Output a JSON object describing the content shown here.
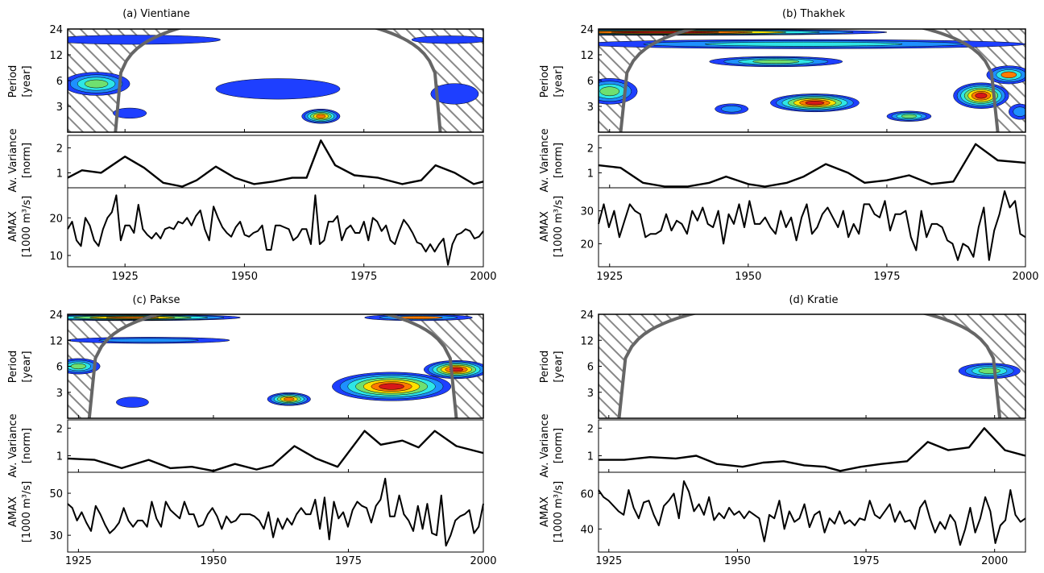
{
  "colors": {
    "blue": "#1e3fff",
    "lightblue": "#1e90ff",
    "cyan": "#2ee6e6",
    "green": "#6fe06f",
    "yellow": "#ffe000",
    "orange": "#ff7a00",
    "red": "#d81818",
    "coi": "#666666",
    "hatch": "#888888",
    "line": "#000000"
  },
  "chart_data": [
    {
      "type": "line",
      "panel": "a",
      "title": "(a) Vientiane",
      "period_label": [
        "Period",
        "[year]"
      ],
      "variance_label": [
        "Av. Variance",
        "[norm]"
      ],
      "amax_label": [
        "AMAX",
        "[1000 m³/s]"
      ],
      "xlim": [
        1913,
        2000
      ],
      "x_ticks": [
        "1925",
        "1950",
        "1975",
        "2000"
      ],
      "period_ticks": [
        "3",
        "6",
        "12",
        "24"
      ],
      "variance_ticks": [
        "1",
        "2"
      ],
      "variance_ylim": [
        0.4,
        2.5
      ],
      "amax_ticks": [
        "10",
        "20"
      ],
      "amax_ylim": [
        7,
        28
      ],
      "coi_peak_year": 1957,
      "coi_half_width": 34,
      "blobs": [
        {
          "x": 1919,
          "y": 5.5,
          "rx": 7,
          "ry": 0.45,
          "levels": [
            "blue",
            "lightblue",
            "cyan",
            "green"
          ]
        },
        {
          "x": 1926,
          "y": 2.5,
          "rx": 3.5,
          "ry": 0.2,
          "levels": [
            "blue"
          ]
        },
        {
          "x": 1927,
          "y": 18,
          "rx": 18,
          "ry": 0.18,
          "levels": [
            "blue"
          ]
        },
        {
          "x": 1957,
          "y": 4.8,
          "rx": 13,
          "ry": 0.4,
          "levels": [
            "blue"
          ]
        },
        {
          "x": 1966,
          "y": 2.3,
          "rx": 4,
          "ry": 0.28,
          "levels": [
            "blue",
            "lightblue",
            "cyan",
            "green",
            "yellow",
            "orange"
          ]
        },
        {
          "x": 1994,
          "y": 4.2,
          "rx": 5,
          "ry": 0.4,
          "levels": [
            "blue"
          ]
        },
        {
          "x": 1993,
          "y": 18,
          "rx": 8,
          "ry": 0.15,
          "levels": [
            "blue"
          ]
        }
      ],
      "variance": [
        [
          1913,
          0.8
        ],
        [
          1916,
          1.1
        ],
        [
          1920,
          1.0
        ],
        [
          1925,
          1.65
        ],
        [
          1929,
          1.2
        ],
        [
          1933,
          0.6
        ],
        [
          1937,
          0.45
        ],
        [
          1940,
          0.7
        ],
        [
          1944,
          1.25
        ],
        [
          1948,
          0.8
        ],
        [
          1952,
          0.55
        ],
        [
          1956,
          0.65
        ],
        [
          1960,
          0.8
        ],
        [
          1963,
          0.8
        ],
        [
          1966,
          2.3
        ],
        [
          1969,
          1.3
        ],
        [
          1973,
          0.9
        ],
        [
          1978,
          0.8
        ],
        [
          1983,
          0.55
        ],
        [
          1987,
          0.7
        ],
        [
          1990,
          1.3
        ],
        [
          1994,
          1.0
        ],
        [
          1998,
          0.55
        ],
        [
          2000,
          0.65
        ]
      ],
      "amax": [
        17,
        19,
        14,
        12.5,
        20,
        18,
        14,
        12.5,
        17,
        20,
        21.5,
        26,
        14,
        18,
        18,
        16,
        23.5,
        17,
        15.5,
        14.5,
        16,
        14.5,
        17,
        17.5,
        17,
        19,
        18.5,
        20,
        18,
        20.5,
        22,
        17,
        14,
        23,
        20,
        17.5,
        16,
        15,
        17.5,
        19,
        15.5,
        15,
        16,
        16.5,
        18,
        11.5,
        11.5,
        18,
        18,
        17.5,
        17,
        14,
        15,
        17,
        17,
        13,
        26,
        13,
        14,
        19,
        19,
        20.5,
        14,
        17,
        18,
        16,
        16,
        19,
        14,
        20,
        19,
        16.5,
        18,
        14,
        13,
        16.5,
        19.5,
        18,
        16,
        13.5,
        13,
        11,
        13,
        11,
        13,
        14.5,
        7.5,
        13,
        15.5,
        16,
        17,
        16.5,
        14.5,
        15,
        16.5
      ]
    },
    {
      "type": "line",
      "panel": "b",
      "title": "(b) Thakhek",
      "period_label": [
        "Period",
        "[year]"
      ],
      "variance_label": [
        "Av. Variance",
        "[norm]"
      ],
      "amax_label": [
        "AMAX",
        "[1000 m³/s]"
      ],
      "xlim": [
        1923,
        2000
      ],
      "x_ticks": [
        "1925",
        "1950",
        "1975",
        "2000"
      ],
      "period_ticks": [
        "3",
        "6",
        "12",
        "24"
      ],
      "variance_ticks": [
        "1",
        "2"
      ],
      "variance_ylim": [
        0.4,
        2.5
      ],
      "amax_ticks": [
        "20",
        "30"
      ],
      "amax_ylim": [
        13,
        37
      ],
      "coi_peak_year": 1961,
      "coi_half_width": 34,
      "blobs": [
        {
          "x": 1935,
          "y": 22,
          "rx": 40,
          "ry": 0.12,
          "levels": [
            "blue",
            "lightblue",
            "cyan",
            "yellow",
            "orange",
            "red"
          ]
        },
        {
          "x": 1960,
          "y": 16,
          "rx": 40,
          "ry": 0.18,
          "levels": [
            "blue",
            "lightblue",
            "cyan"
          ]
        },
        {
          "x": 1955,
          "y": 10,
          "rx": 12,
          "ry": 0.2,
          "levels": [
            "blue",
            "lightblue",
            "cyan",
            "green"
          ]
        },
        {
          "x": 1925,
          "y": 4.5,
          "rx": 5,
          "ry": 0.5,
          "levels": [
            "blue",
            "lightblue",
            "cyan",
            "green"
          ]
        },
        {
          "x": 1947,
          "y": 2.8,
          "rx": 3,
          "ry": 0.2,
          "levels": [
            "blue",
            "lightblue"
          ]
        },
        {
          "x": 1962,
          "y": 3.3,
          "rx": 8,
          "ry": 0.35,
          "levels": [
            "blue",
            "lightblue",
            "cyan",
            "green",
            "yellow",
            "orange",
            "red"
          ]
        },
        {
          "x": 1979,
          "y": 2.3,
          "rx": 4,
          "ry": 0.2,
          "levels": [
            "blue",
            "lightblue",
            "cyan",
            "green"
          ]
        },
        {
          "x": 1992,
          "y": 4.0,
          "rx": 5,
          "ry": 0.5,
          "levels": [
            "blue",
            "lightblue",
            "cyan",
            "green",
            "yellow",
            "orange",
            "red"
          ]
        },
        {
          "x": 1997,
          "y": 7,
          "rx": 4,
          "ry": 0.35,
          "levels": [
            "blue",
            "lightblue",
            "cyan",
            "orange"
          ]
        },
        {
          "x": 1999,
          "y": 2.6,
          "rx": 2,
          "ry": 0.3,
          "levels": [
            "blue",
            "lightblue"
          ]
        }
      ],
      "variance": [
        [
          1923,
          1.3
        ],
        [
          1927,
          1.2
        ],
        [
          1931,
          0.6
        ],
        [
          1935,
          0.45
        ],
        [
          1939,
          0.45
        ],
        [
          1943,
          0.6
        ],
        [
          1946,
          0.85
        ],
        [
          1950,
          0.55
        ],
        [
          1953,
          0.45
        ],
        [
          1957,
          0.6
        ],
        [
          1960,
          0.85
        ],
        [
          1964,
          1.35
        ],
        [
          1968,
          1.0
        ],
        [
          1971,
          0.6
        ],
        [
          1975,
          0.7
        ],
        [
          1979,
          0.9
        ],
        [
          1983,
          0.55
        ],
        [
          1987,
          0.65
        ],
        [
          1991,
          2.15
        ],
        [
          1995,
          1.5
        ],
        [
          2000,
          1.4
        ]
      ],
      "amax": [
        26,
        32,
        25,
        30,
        22,
        27,
        32,
        30,
        29,
        22,
        23,
        23,
        24,
        29,
        24,
        27,
        26,
        23,
        30,
        27,
        31,
        26,
        25,
        30,
        20,
        29,
        26,
        32,
        25,
        33,
        26,
        26,
        28,
        25,
        23,
        30,
        25,
        28,
        21,
        28,
        32,
        23,
        25,
        29,
        31,
        28,
        25,
        30,
        22,
        26,
        23,
        32,
        32,
        29,
        28,
        33,
        24,
        29,
        29,
        30,
        22,
        18,
        30,
        22,
        26,
        26,
        25,
        21,
        20,
        15,
        20,
        19,
        16,
        25,
        31,
        15,
        24,
        29,
        36,
        31,
        33,
        23,
        22
      ]
    },
    {
      "type": "line",
      "panel": "c",
      "title": "(c) Pakse",
      "period_label": [
        "Period",
        "[year]"
      ],
      "variance_label": [
        "Av. Variance",
        "[norm]"
      ],
      "amax_label": [
        "AMAX",
        "[1000 m³/s]"
      ],
      "xlim": [
        1923,
        2000
      ],
      "x_ticks": [
        "1925",
        "1950",
        "1975",
        "2000"
      ],
      "period_ticks": [
        "3",
        "6",
        "12",
        "24"
      ],
      "variance_ticks": [
        "1",
        "2"
      ],
      "variance_ylim": [
        0.4,
        2.3
      ],
      "amax_ticks": [
        "30",
        "50"
      ],
      "amax_ylim": [
        22,
        60
      ],
      "coi_peak_year": 1961,
      "coi_half_width": 34,
      "blobs": [
        {
          "x": 1935,
          "y": 22,
          "rx": 20,
          "ry": 0.12,
          "levels": [
            "blue",
            "lightblue",
            "cyan",
            "green",
            "yellow",
            "orange"
          ]
        },
        {
          "x": 1938,
          "y": 12,
          "rx": 15,
          "ry": 0.12,
          "levels": [
            "blue",
            "lightblue"
          ]
        },
        {
          "x": 1925,
          "y": 6,
          "rx": 4,
          "ry": 0.3,
          "levels": [
            "blue",
            "lightblue",
            "cyan",
            "green"
          ]
        },
        {
          "x": 1935,
          "y": 2.3,
          "rx": 3,
          "ry": 0.2,
          "levels": [
            "blue"
          ]
        },
        {
          "x": 1964,
          "y": 2.5,
          "rx": 4,
          "ry": 0.25,
          "levels": [
            "blue",
            "lightblue",
            "cyan",
            "green",
            "yellow",
            "orange"
          ]
        },
        {
          "x": 1983,
          "y": 3.5,
          "rx": 11,
          "ry": 0.55,
          "levels": [
            "blue",
            "lightblue",
            "cyan",
            "green",
            "yellow",
            "orange",
            "red"
          ]
        },
        {
          "x": 1995,
          "y": 5.5,
          "rx": 6,
          "ry": 0.35,
          "levels": [
            "blue",
            "lightblue",
            "cyan",
            "green",
            "yellow",
            "orange",
            "red"
          ]
        },
        {
          "x": 1988,
          "y": 22,
          "rx": 10,
          "ry": 0.12,
          "levels": [
            "blue",
            "lightblue",
            "orange"
          ]
        }
      ],
      "variance": [
        [
          1923,
          0.9
        ],
        [
          1928,
          0.85
        ],
        [
          1933,
          0.55
        ],
        [
          1938,
          0.85
        ],
        [
          1942,
          0.55
        ],
        [
          1946,
          0.6
        ],
        [
          1950,
          0.45
        ],
        [
          1954,
          0.7
        ],
        [
          1958,
          0.5
        ],
        [
          1961,
          0.65
        ],
        [
          1965,
          1.35
        ],
        [
          1969,
          0.9
        ],
        [
          1973,
          0.6
        ],
        [
          1978,
          1.9
        ],
        [
          1981,
          1.4
        ],
        [
          1985,
          1.55
        ],
        [
          1988,
          1.3
        ],
        [
          1991,
          1.9
        ],
        [
          1995,
          1.35
        ],
        [
          2000,
          1.1
        ]
      ],
      "amax": [
        45,
        43,
        37,
        41,
        36,
        32,
        44,
        40,
        35,
        31,
        33,
        36,
        43,
        37,
        34,
        37,
        37,
        34,
        46,
        38,
        34,
        46,
        42,
        40,
        38,
        46,
        40,
        40,
        34,
        35,
        40,
        43,
        39,
        33,
        39,
        36,
        37,
        40,
        40,
        40,
        39,
        37,
        33,
        41,
        29,
        38,
        33,
        38,
        35,
        40,
        43,
        40,
        40,
        47,
        33,
        48,
        28,
        46,
        38,
        41,
        34,
        42,
        46,
        44,
        43,
        36,
        44,
        47,
        57,
        39,
        39,
        49,
        40,
        37,
        32,
        44,
        33,
        45,
        31,
        30,
        49,
        25,
        30,
        37,
        39,
        40,
        42,
        31,
        34,
        45
      ]
    },
    {
      "type": "line",
      "panel": "d",
      "title": "(d) Kratie",
      "period_label": [
        "Period",
        "[year]"
      ],
      "variance_label": [
        "Av. Variance",
        "[norm]"
      ],
      "amax_label": [
        "AMAX",
        "[1000 m³/s]"
      ],
      "xlim": [
        1923,
        2006
      ],
      "x_ticks": [
        "1925",
        "1950",
        "1975",
        "2000"
      ],
      "period_ticks": [
        "3",
        "6",
        "12",
        "24"
      ],
      "variance_ticks": [
        "1",
        "2"
      ],
      "variance_ylim": [
        0.4,
        2.3
      ],
      "amax_ticks": [
        "40",
        "60"
      ],
      "amax_ylim": [
        27,
        72
      ],
      "coi_peak_year": 1964,
      "coi_half_width": 37,
      "blobs": [
        {
          "x": 1999,
          "y": 5.3,
          "rx": 6,
          "ry": 0.3,
          "levels": [
            "blue",
            "lightblue",
            "cyan",
            "green"
          ]
        }
      ],
      "variance": [
        [
          1923,
          0.85
        ],
        [
          1928,
          0.85
        ],
        [
          1933,
          0.95
        ],
        [
          1938,
          0.9
        ],
        [
          1942,
          1.0
        ],
        [
          1946,
          0.7
        ],
        [
          1951,
          0.6
        ],
        [
          1955,
          0.75
        ],
        [
          1959,
          0.8
        ],
        [
          1963,
          0.65
        ],
        [
          1967,
          0.6
        ],
        [
          1970,
          0.45
        ],
        [
          1974,
          0.6
        ],
        [
          1978,
          0.7
        ],
        [
          1983,
          0.8
        ],
        [
          1987,
          1.5
        ],
        [
          1991,
          1.2
        ],
        [
          1995,
          1.3
        ],
        [
          1998,
          2.0
        ],
        [
          2002,
          1.2
        ],
        [
          2006,
          1.0
        ]
      ],
      "amax": [
        62,
        58,
        56,
        53,
        50,
        48,
        62,
        52,
        46,
        55,
        56,
        48,
        42,
        53,
        56,
        60,
        46,
        67,
        61,
        50,
        54,
        48,
        58,
        45,
        49,
        46,
        52,
        48,
        50,
        46,
        50,
        48,
        46,
        33,
        48,
        46,
        56,
        40,
        50,
        44,
        46,
        54,
        41,
        48,
        50,
        38,
        46,
        43,
        50,
        43,
        45,
        42,
        46,
        45,
        56,
        48,
        46,
        50,
        54,
        44,
        50,
        44,
        45,
        40,
        52,
        56,
        46,
        38,
        44,
        40,
        48,
        44,
        31,
        40,
        52,
        38,
        46,
        58,
        50,
        32,
        42,
        45,
        62,
        48,
        44,
        46
      ]
    }
  ]
}
